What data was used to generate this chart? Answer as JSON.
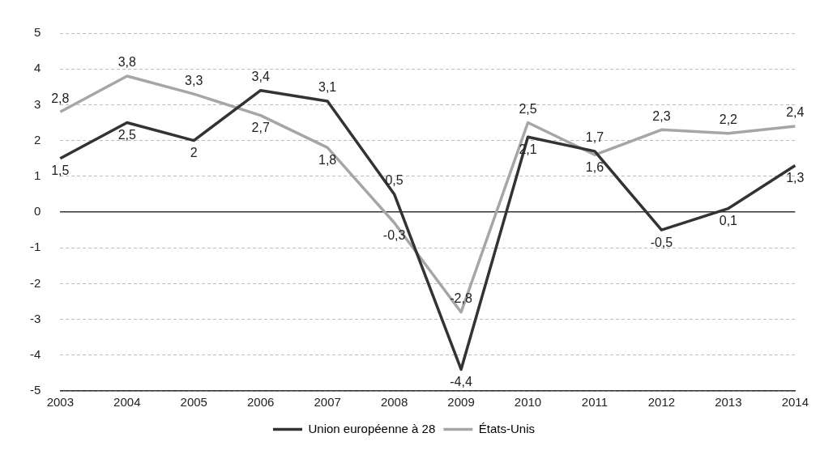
{
  "chart_data": {
    "type": "line",
    "categories": [
      "2003",
      "2004",
      "2005",
      "2006",
      "2007",
      "2008",
      "2009",
      "2010",
      "2011",
      "2012",
      "2013",
      "2014"
    ],
    "series": [
      {
        "name": "Union européenne à 28",
        "color": "#333333",
        "values": [
          1.5,
          2.5,
          2,
          3.4,
          3.1,
          0.5,
          -4.4,
          2.1,
          1.7,
          -0.5,
          0.1,
          1.3
        ],
        "value_labels": [
          "1,5",
          "2,5",
          "2",
          "3,4",
          "3,1",
          "0,5",
          "-4,4",
          "2,1",
          "1,7",
          "-0,5",
          "0,1",
          "1,3"
        ]
      },
      {
        "name": "États-Unis",
        "color": "#a6a6a6",
        "values": [
          2.8,
          3.8,
          3.3,
          2.7,
          1.8,
          -0.3,
          -2.8,
          2.5,
          1.6,
          2.3,
          2.2,
          2.4
        ],
        "value_labels": [
          "2,8",
          "3,8",
          "3,3",
          "2,7",
          "1,8",
          "-0,3",
          "-2,8",
          "2,5",
          "1,6",
          "2,3",
          "2,2",
          "2,4"
        ]
      }
    ],
    "ylim": [
      -5,
      5
    ],
    "yticks": [
      -5,
      -4,
      -3,
      -2,
      -1,
      0,
      1,
      2,
      3,
      4,
      5
    ],
    "grid": "y",
    "legend": "bottom",
    "marker": "none",
    "line_style": "solid"
  }
}
